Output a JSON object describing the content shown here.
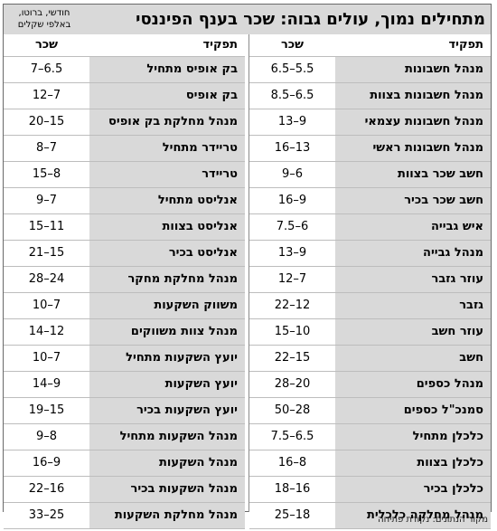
{
  "title": "מתחילים נמוך, עולים גבוה: שכר בענף הפיננסי",
  "units_line1": "חודשי, ברוטו,",
  "units_line2": "באלפי שקלים",
  "headers": {
    "role": "תפקיד",
    "salary": "שכר"
  },
  "right_table": [
    {
      "role": "מנהל חשבונות",
      "salary": "6.5–5.5"
    },
    {
      "role": "מנהל חשבונות בצוות",
      "salary": "8.5–6.5"
    },
    {
      "role": "מנהל חשבונות עצמאי",
      "salary": "13–9"
    },
    {
      "role": "מנהל חשבונות ראשי",
      "salary": "16–13"
    },
    {
      "role": "חשב שכר בצוות",
      "salary": "9–6"
    },
    {
      "role": "חשב שכר בכיר",
      "salary": "16–9"
    },
    {
      "role": "איש גבייה",
      "salary": "7.5–6"
    },
    {
      "role": "מנהל גבייה",
      "salary": "13–9"
    },
    {
      "role": "עוזר גזבר",
      "salary": "12–7"
    },
    {
      "role": "גזבר",
      "salary": "22–12"
    },
    {
      "role": "עוזר חשב",
      "salary": "15–10"
    },
    {
      "role": "חשב",
      "salary": "22–15"
    },
    {
      "role": "מנהל כספים",
      "salary": "28–20"
    },
    {
      "role": "סמנכ\"ל כספים",
      "salary": "50–28"
    },
    {
      "role": "כלכלן מתחיל",
      "salary": "7.5–6.5"
    },
    {
      "role": "כלכלן בצוות",
      "salary": "16–8"
    },
    {
      "role": "כלכלן בכיר",
      "salary": "18–16"
    },
    {
      "role": "מנהל מחלקה כלכלית",
      "salary": "25–18"
    }
  ],
  "left_table": [
    {
      "role": "בק אופיס מתחיל",
      "salary": "7–6.5"
    },
    {
      "role": "בק אופיס",
      "salary": "12–7"
    },
    {
      "role": "מנהל מחלקת בק אופיס",
      "salary": "20–15"
    },
    {
      "role": "טריידר מתחיל",
      "salary": "8–7"
    },
    {
      "role": "טריידר",
      "salary": "15–8"
    },
    {
      "role": "אנליסט מתחיל",
      "salary": "9–7"
    },
    {
      "role": "אנליסט בצוות",
      "salary": "15–11"
    },
    {
      "role": "אנליסט בכיר",
      "salary": "21–15"
    },
    {
      "role": "מנהל מחלקת מחקר",
      "salary": "28–24"
    },
    {
      "role": "משווק השקעות",
      "salary": "10–7"
    },
    {
      "role": "מנהל צוות משווקים",
      "salary": "14–12"
    },
    {
      "role": "יועץ השקעות מתחיל",
      "salary": "10–7"
    },
    {
      "role": "יועץ השקעות",
      "salary": "14–9"
    },
    {
      "role": "יועץ השקעות בכיר",
      "salary": "19–15"
    },
    {
      "role": "מנהל השקעות מתחיל",
      "salary": "9–8"
    },
    {
      "role": "מנהל השקעות",
      "salary": "16–9"
    },
    {
      "role": "מנהל השקעות בכיר",
      "salary": "22–16"
    },
    {
      "role": "מנהל מחלקת השקעות",
      "salary": "33–25"
    }
  ],
  "source": "מקור הנתונים: נקודת פתיחה"
}
